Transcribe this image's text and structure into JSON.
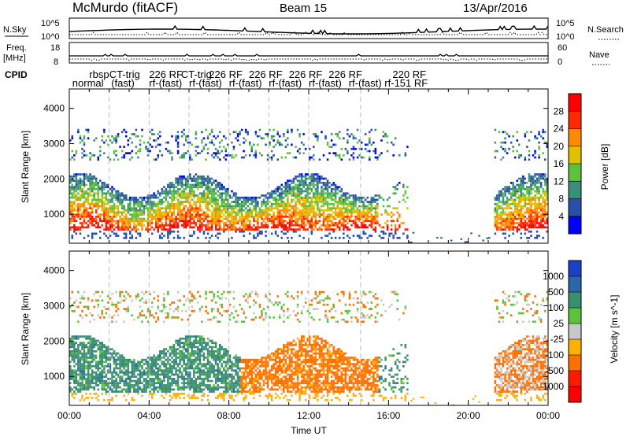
{
  "header": {
    "left": "McMurdo (fitACF)",
    "center": "Beam 15",
    "right": "13/Apr/2016"
  },
  "strip_labels": {
    "nsky": "N.Sky",
    "nsky_hi": "10^5",
    "nsky_lo": "10^0",
    "nsearch": "N.Search",
    "nsearch_hi": "10^5",
    "nsearch_lo": "10^0",
    "freq": "Freq.",
    "freq_unit": "[MHz]",
    "freq_hi": "18",
    "freq_lo": "8",
    "nave": "Nave",
    "nave_hi": "60",
    "nave_lo": "0",
    "cpid": "CPID"
  },
  "cpid_labels": [
    {
      "text": "rbsp",
      "t": 1.0,
      "row": 0
    },
    {
      "text": "CT-trig",
      "t": 2.0,
      "row": 0
    },
    {
      "text": "226 RF",
      "t": 4.0,
      "row": 0
    },
    {
      "text": "CT-trig",
      "t": 5.6,
      "row": 0
    },
    {
      "text": "226 RF",
      "t": 7.0,
      "row": 0
    },
    {
      "text": "226 RF",
      "t": 9.0,
      "row": 0
    },
    {
      "text": "226 RF",
      "t": 11.0,
      "row": 0
    },
    {
      "text": "226 RF",
      "t": 13.0,
      "row": 0
    },
    {
      "text": "220 RF",
      "t": 16.2,
      "row": 0
    },
    {
      "text": "normal",
      "t": 0.15,
      "row": 1
    },
    {
      "text": "(fast)",
      "t": 2.1,
      "row": 1
    },
    {
      "text": "rf-(fast)",
      "t": 4.0,
      "row": 1
    },
    {
      "text": "rf-(fast)",
      "t": 6.0,
      "row": 1
    },
    {
      "text": "rf-(fast)",
      "t": 8.0,
      "row": 1
    },
    {
      "text": "rf-(fast)",
      "t": 10.0,
      "row": 1
    },
    {
      "text": "rf-(fast)",
      "t": 12.0,
      "row": 1
    },
    {
      "text": "rf-(fast)",
      "t": 14.0,
      "row": 1
    },
    {
      "text": "rf-151 RF",
      "t": 15.8,
      "row": 1
    }
  ],
  "chart_data": [
    {
      "type": "heatmap",
      "name": "power",
      "ylabel": "Slant Range [km]",
      "xlim": [
        0,
        24
      ],
      "ylim": [
        180,
        4550
      ],
      "yticks": [
        1000,
        2000,
        3000,
        4000
      ],
      "colorbar_label": "Power [dB]",
      "colorbar_ticks": [
        4,
        8,
        12,
        16,
        20,
        24,
        28
      ],
      "colorbar_range": [
        0,
        32
      ],
      "colors": [
        "#0000ff",
        "#2a4faa",
        "#3b8f79",
        "#5cc23c",
        "#e0c000",
        "#ff8a00",
        "#ff2a00",
        "#ff0000"
      ]
    },
    {
      "type": "heatmap",
      "name": "velocity",
      "ylabel": "Slant Range [km]",
      "xlabel": "Time UT",
      "xlim": [
        0,
        24
      ],
      "ylim": [
        180,
        4550
      ],
      "yticks": [
        1000,
        2000,
        3000,
        4000
      ],
      "xticks": [
        "00:00",
        "04:00",
        "08:00",
        "12:00",
        "16:00",
        "20:00",
        "00:00"
      ],
      "colorbar_label": "Velocity [m s^-1]",
      "colorbar_ticks": [
        "1000",
        "500",
        "100",
        "25",
        "-25",
        "-100",
        "-500",
        "-1000"
      ],
      "colors": [
        "#1e3fc8",
        "#2a68a8",
        "#3a8f6f",
        "#5cc23c",
        "#c8c8c8",
        "#ffb000",
        "#ff7000",
        "#ff1a00",
        "#ff0000"
      ]
    }
  ]
}
